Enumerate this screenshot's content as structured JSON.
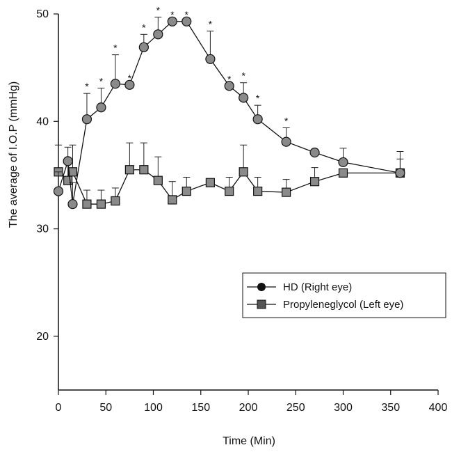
{
  "chart_data": {
    "type": "line",
    "title": "",
    "xlabel": "Time (Min)",
    "ylabel": "The average of I.O.P (mmHg)",
    "xlim": [
      0,
      400
    ],
    "ylim": [
      15,
      50
    ],
    "x_ticks": [
      0,
      50,
      100,
      150,
      200,
      250,
      300,
      350,
      400
    ],
    "y_ticks": [
      20,
      30,
      40,
      50
    ],
    "grid": false,
    "legend_position": "bottom-right",
    "significance_marker": "*",
    "series": [
      {
        "name": "HD (Right eye)",
        "marker": "circle",
        "color": "#8a8a8a",
        "points": [
          {
            "x": 0,
            "y": 33.5,
            "err": 1.8,
            "sig": false
          },
          {
            "x": 10,
            "y": 36.3,
            "err": 1.3,
            "sig": false
          },
          {
            "x": 15,
            "y": 32.3,
            "err": 2.0,
            "sig": false
          },
          {
            "x": 30,
            "y": 40.2,
            "err": 2.4,
            "sig": true
          },
          {
            "x": 45,
            "y": 41.3,
            "err": 1.8,
            "sig": true
          },
          {
            "x": 60,
            "y": 43.5,
            "err": 2.7,
            "sig": true
          },
          {
            "x": 75,
            "y": 43.4,
            "err": 0,
            "sig": true
          },
          {
            "x": 90,
            "y": 46.9,
            "err": 1.2,
            "sig": true
          },
          {
            "x": 105,
            "y": 48.1,
            "err": 1.6,
            "sig": true
          },
          {
            "x": 120,
            "y": 49.3,
            "err": 0,
            "sig": true
          },
          {
            "x": 135,
            "y": 49.3,
            "err": 0,
            "sig": true
          },
          {
            "x": 160,
            "y": 45.8,
            "err": 2.6,
            "sig": true
          },
          {
            "x": 180,
            "y": 43.3,
            "err": 0,
            "sig": true
          },
          {
            "x": 195,
            "y": 42.2,
            "err": 1.4,
            "sig": true
          },
          {
            "x": 210,
            "y": 40.2,
            "err": 1.3,
            "sig": true
          },
          {
            "x": 240,
            "y": 38.1,
            "err": 1.3,
            "sig": true
          },
          {
            "x": 270,
            "y": 37.1,
            "err": 0,
            "sig": false
          },
          {
            "x": 300,
            "y": 36.2,
            "err": 1.3,
            "sig": false
          },
          {
            "x": 360,
            "y": 35.2,
            "err": 1.3,
            "sig": false
          }
        ]
      },
      {
        "name": "Propyleneglycol (Left eye)",
        "marker": "square",
        "color": "#8a8a8a",
        "points": [
          {
            "x": 0,
            "y": 35.3,
            "err": 2.5
          },
          {
            "x": 10,
            "y": 34.5,
            "err": 2.0
          },
          {
            "x": 15,
            "y": 35.3,
            "err": 2.5
          },
          {
            "x": 30,
            "y": 32.3,
            "err": 1.3
          },
          {
            "x": 45,
            "y": 32.3,
            "err": 1.3
          },
          {
            "x": 60,
            "y": 32.6,
            "err": 1.2
          },
          {
            "x": 75,
            "y": 35.5,
            "err": 2.5
          },
          {
            "x": 90,
            "y": 35.5,
            "err": 2.5
          },
          {
            "x": 105,
            "y": 34.5,
            "err": 2.2
          },
          {
            "x": 120,
            "y": 32.7,
            "err": 1.7
          },
          {
            "x": 135,
            "y": 33.5,
            "err": 1.3
          },
          {
            "x": 160,
            "y": 34.3,
            "err": 0
          },
          {
            "x": 180,
            "y": 33.5,
            "err": 1.3
          },
          {
            "x": 195,
            "y": 35.3,
            "err": 2.5
          },
          {
            "x": 210,
            "y": 33.5,
            "err": 1.3
          },
          {
            "x": 240,
            "y": 33.4,
            "err": 1.2
          },
          {
            "x": 270,
            "y": 34.4,
            "err": 1.3
          },
          {
            "x": 300,
            "y": 35.2,
            "err": 0
          },
          {
            "x": 360,
            "y": 35.2,
            "err": 2.0
          }
        ]
      }
    ]
  }
}
